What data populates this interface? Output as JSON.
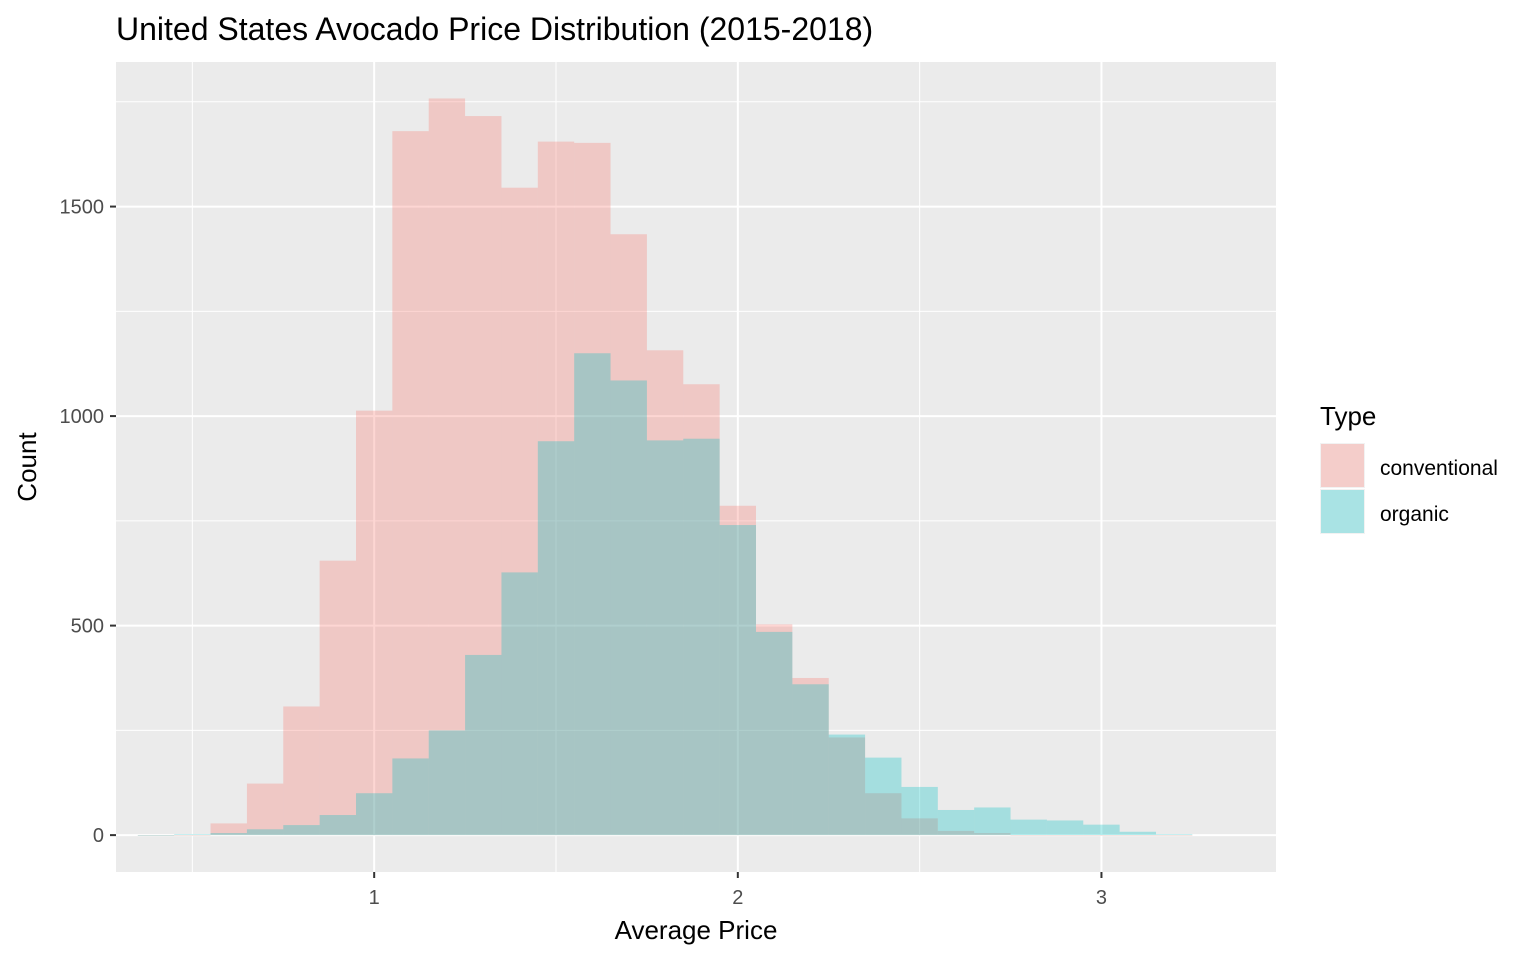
{
  "chart_data": {
    "type": "histogram",
    "title": "United States Avocado Price Distribution (2015-2018)",
    "xlabel": "Average Price",
    "ylabel": "Count",
    "xlim": [
      0.29,
      3.48
    ],
    "ylim": [
      -88,
      1845
    ],
    "x_ticks": [
      1,
      2,
      3
    ],
    "x_tick_labels": [
      "1",
      "2",
      "3"
    ],
    "x_minor_ticks": [
      0.5,
      1.5,
      2.5
    ],
    "y_ticks": [
      0,
      500,
      1000,
      1500
    ],
    "y_tick_labels": [
      "0",
      "500",
      "1000",
      "1500"
    ],
    "y_minor_ticks": [
      250,
      750,
      1250,
      1750
    ],
    "grid": true,
    "legend": {
      "title": "Type",
      "position": "right"
    },
    "bins": {
      "start": 0.35,
      "width": 0.1,
      "count": 29
    },
    "series": [
      {
        "name": "conventional",
        "color": "#F8766D",
        "values": [
          0,
          0,
          28,
          123,
          307,
          655,
          1013,
          1680,
          1758,
          1716,
          1545,
          1655,
          1652,
          1434,
          1157,
          1076,
          786,
          503,
          375,
          233,
          100,
          40,
          10,
          5,
          0,
          0,
          0,
          0,
          0
        ]
      },
      {
        "name": "organic",
        "color": "#00BFC4",
        "values": [
          0,
          2,
          5,
          14,
          24,
          48,
          100,
          183,
          250,
          430,
          627,
          940,
          1150,
          1085,
          942,
          946,
          740,
          485,
          360,
          240,
          185,
          115,
          60,
          66,
          37,
          35,
          25,
          8,
          2
        ]
      }
    ],
    "fill_alpha": 0.3
  }
}
